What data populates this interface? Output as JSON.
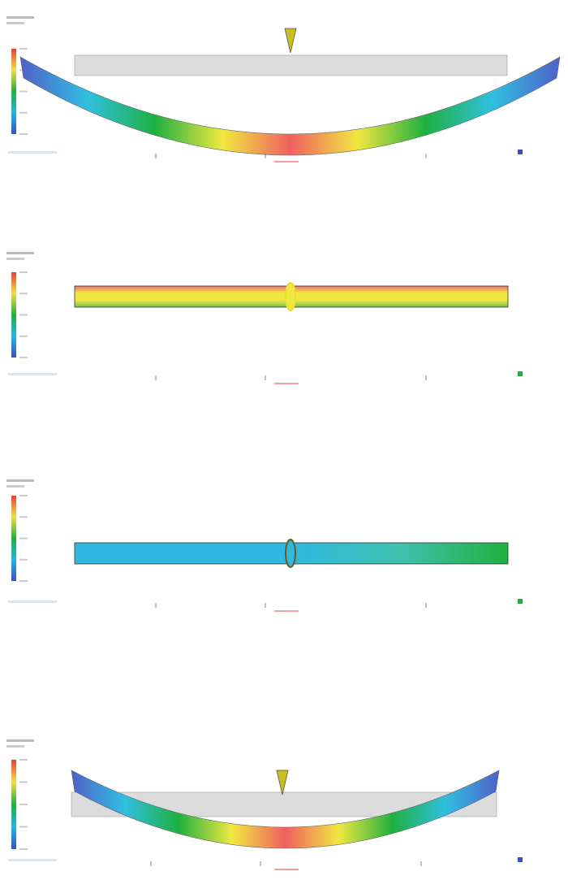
{
  "colormap": [
    "#e8403a",
    "#f0e040",
    "#20b040",
    "#20b8e0",
    "#3a50c0"
  ],
  "panels": [
    {
      "deformed": true,
      "load_arrow": true,
      "gradient": "horizontal",
      "beam_colors": [
        "#5060c8",
        "#30c0e0",
        "#20b040",
        "#f0e840",
        "#f06060",
        "#f0e840",
        "#20b040",
        "#30c0e0",
        "#5060c8"
      ]
    },
    {
      "deformed": false,
      "load_arrow": false,
      "gradient": "vertical",
      "beam_colors": [
        "#f07070",
        "#f0e840",
        "#f0e840",
        "#70c050"
      ]
    },
    {
      "deformed": false,
      "load_arrow": false,
      "gradient": "horizontal",
      "beam_colors": [
        "#30b8e0",
        "#30b8e0",
        "#30b8e0",
        "#40c0b0",
        "#20b040"
      ]
    },
    {
      "deformed": true,
      "load_arrow": true,
      "gradient": "horizontal",
      "beam_colors": [
        "#5060c8",
        "#30c0e0",
        "#20b040",
        "#f0e840",
        "#f06060",
        "#f0e840",
        "#20b040",
        "#30c0e0",
        "#5060c8"
      ]
    }
  ]
}
